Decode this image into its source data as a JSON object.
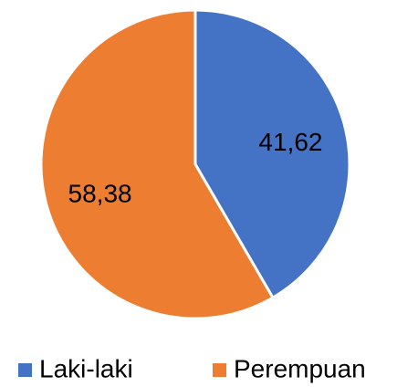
{
  "chart_data": {
    "type": "pie",
    "categories": [
      "Laki-laki",
      "Perempuan"
    ],
    "values": [
      41.62,
      58.38
    ],
    "value_labels": [
      "41,62",
      "58,38"
    ],
    "colors": [
      "#4472c4",
      "#ed7d31"
    ],
    "legend": "bottom"
  }
}
